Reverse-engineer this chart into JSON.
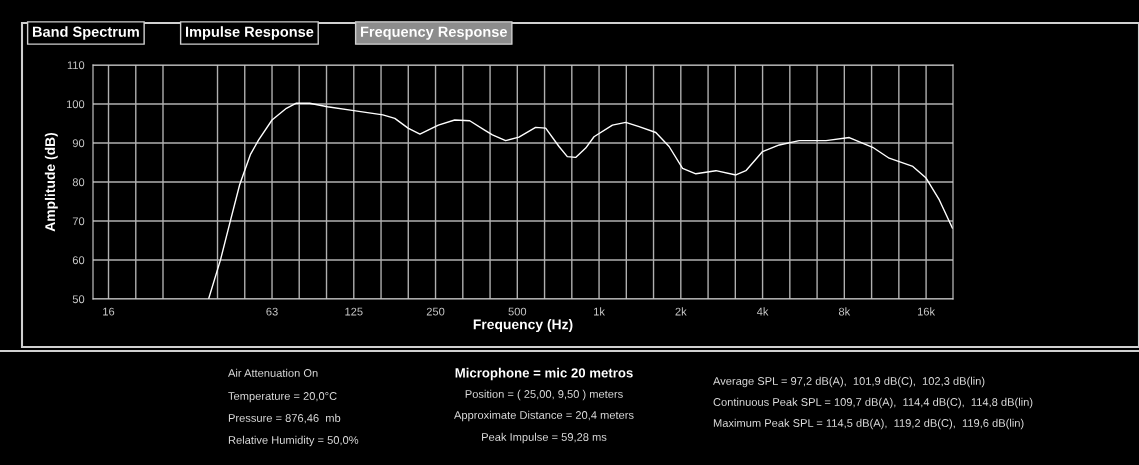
{
  "chart_data": {
    "type": "line",
    "xlabel": "Frequency (Hz)",
    "ylabel": "Amplitude (dB)",
    "log": "x",
    "grid": true,
    "legend": false,
    "marker": "none",
    "line_style": "solid",
    "xlim": [
      13.7,
      20100
    ],
    "ylim": [
      50,
      110
    ],
    "xticks": [
      {
        "value": 15.625,
        "label": "16"
      },
      {
        "value": 19.69,
        "label": null
      },
      {
        "value": 24.8,
        "label": null
      },
      {
        "value": 39.37,
        "label": null
      },
      {
        "value": 49.6,
        "label": null
      },
      {
        "value": 62.5,
        "label": "63"
      },
      {
        "value": 78.7,
        "label": null
      },
      {
        "value": 99.2,
        "label": null
      },
      {
        "value": 125,
        "label": "125"
      },
      {
        "value": 157.5,
        "label": null
      },
      {
        "value": 198.4,
        "label": null
      },
      {
        "value": 250,
        "label": "250"
      },
      {
        "value": 315,
        "label": null
      },
      {
        "value": 396.9,
        "label": null
      },
      {
        "value": 500,
        "label": "500"
      },
      {
        "value": 630,
        "label": null
      },
      {
        "value": 793.7,
        "label": null
      },
      {
        "value": 1000,
        "label": "1k"
      },
      {
        "value": 1260,
        "label": null
      },
      {
        "value": 1587,
        "label": null
      },
      {
        "value": 2000,
        "label": "2k"
      },
      {
        "value": 2520,
        "label": null
      },
      {
        "value": 3175,
        "label": null
      },
      {
        "value": 4000,
        "label": "4k"
      },
      {
        "value": 5040,
        "label": null
      },
      {
        "value": 6350,
        "label": null
      },
      {
        "value": 8000,
        "label": "8k"
      },
      {
        "value": 10080,
        "label": null
      },
      {
        "value": 12700,
        "label": null
      },
      {
        "value": 16000,
        "label": "16k"
      }
    ],
    "yticks": [
      50,
      60,
      70,
      80,
      90,
      100,
      110
    ],
    "series": [
      {
        "color": "#ffffff",
        "x": [
          36.5,
          40.4,
          44,
          47.5,
          52,
          55.8,
          62.5,
          70.6,
          76.8,
          86,
          100,
          125,
          160,
          177,
          198,
          219,
          256,
          294,
          334,
          379,
          405,
          453,
          507,
          584,
          636,
          712,
          764,
          820,
          893,
          958,
          1120,
          1254,
          1404,
          1618,
          1811,
          2030,
          2272,
          2693,
          3190,
          3472,
          4000,
          4608,
          5460,
          6850,
          8340,
          10170,
          11700,
          14300,
          16000,
          17900,
          20000
        ],
        "values": [
          50,
          60.1,
          70.3,
          79.3,
          87,
          90.8,
          95.9,
          98.9,
          100.2,
          100.2,
          99.3,
          98.3,
          97.2,
          96.3,
          93.8,
          92.3,
          94.6,
          95.9,
          95.7,
          93.3,
          92.1,
          90.6,
          91.5,
          94.0,
          93.8,
          89.1,
          86.5,
          86.3,
          88.7,
          91.6,
          94.6,
          95.3,
          94.2,
          92.7,
          89.1,
          83.5,
          82.1,
          82.9,
          81.8,
          82.9,
          87.8,
          89.5,
          90.6,
          90.6,
          91.4,
          88.9,
          86.1,
          84,
          81,
          75.4,
          68.2
        ]
      }
    ],
    "annotations": [
      "Band Spectrum",
      "Impulse Response",
      "Frequency Response",
      "Air Attenuation On",
      "Temperature = 20,0°C",
      "Pressure = 876,46  mb",
      "Relative Humidity = 50,0%",
      "Microphone = mic 20 metros",
      "Position = ( 25,00, 9,50 ) meters",
      "Approximate Distance = 20,4 meters",
      "Peak Impulse = 59,28 ms",
      "Average SPL = 97,2 dB(A),  101,9 dB(C),  102,3 dB(lin)",
      "Continuous Peak SPL = 109,7 dB(A),  114,4 dB(C),  114,8 dB(lin)",
      "Maximum Peak SPL = 114,5 dB(A),  119,2 dB(C),  119,6 dB(lin)"
    ]
  }
}
